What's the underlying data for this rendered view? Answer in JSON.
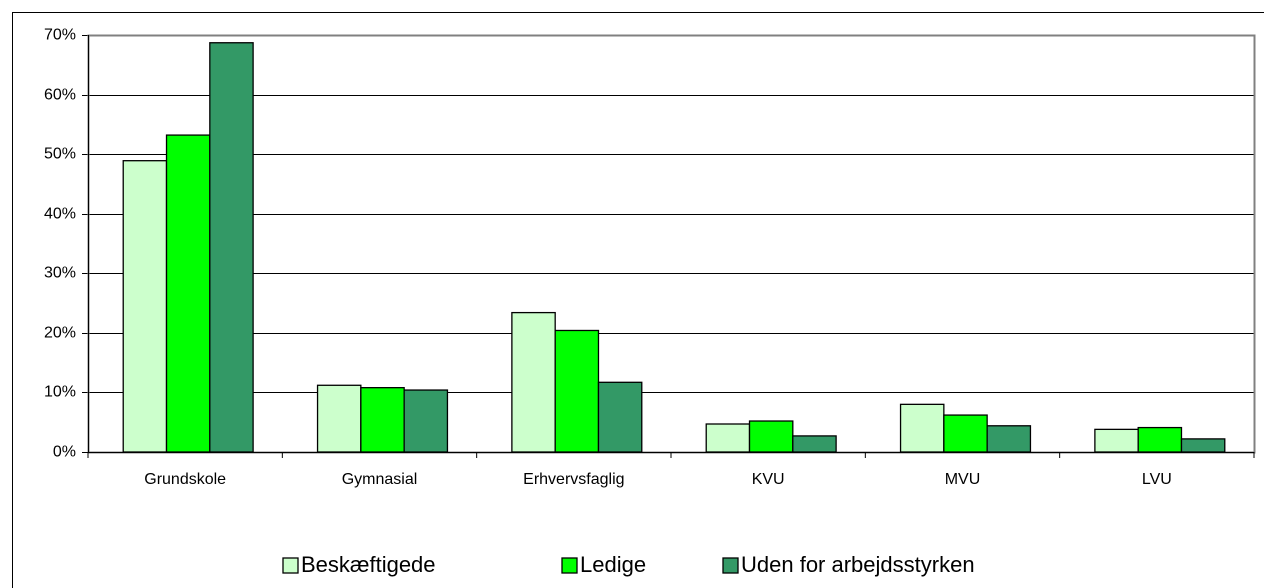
{
  "chart_data": {
    "type": "bar",
    "categories": [
      "Grundskole",
      "Gymnasial",
      "Erhvervsfaglig",
      "KVU",
      "MVU",
      "LVU"
    ],
    "series": [
      {
        "name": "Beskæftigede",
        "color": "#ccffcc",
        "values": [
          48.9,
          11.2,
          23.4,
          4.7,
          8.0,
          3.8
        ]
      },
      {
        "name": "Ledige",
        "color": "#00ff00",
        "values": [
          53.2,
          10.8,
          20.4,
          5.2,
          6.2,
          4.1
        ]
      },
      {
        "name": "Uden for arbejdsstyrken",
        "color": "#339966",
        "values": [
          68.7,
          10.4,
          11.7,
          2.7,
          4.4,
          2.2
        ]
      }
    ],
    "ylim": [
      0,
      70
    ],
    "yticks": [
      {
        "value": 0,
        "label": "0%"
      },
      {
        "value": 10,
        "label": "10%"
      },
      {
        "value": 20,
        "label": "20%"
      },
      {
        "value": 30,
        "label": "30%"
      },
      {
        "value": 40,
        "label": "40%"
      },
      {
        "value": 50,
        "label": "50%"
      },
      {
        "value": 60,
        "label": "60%"
      },
      {
        "value": 70,
        "label": "70%"
      }
    ],
    "grid": true,
    "legend": "bottom"
  }
}
